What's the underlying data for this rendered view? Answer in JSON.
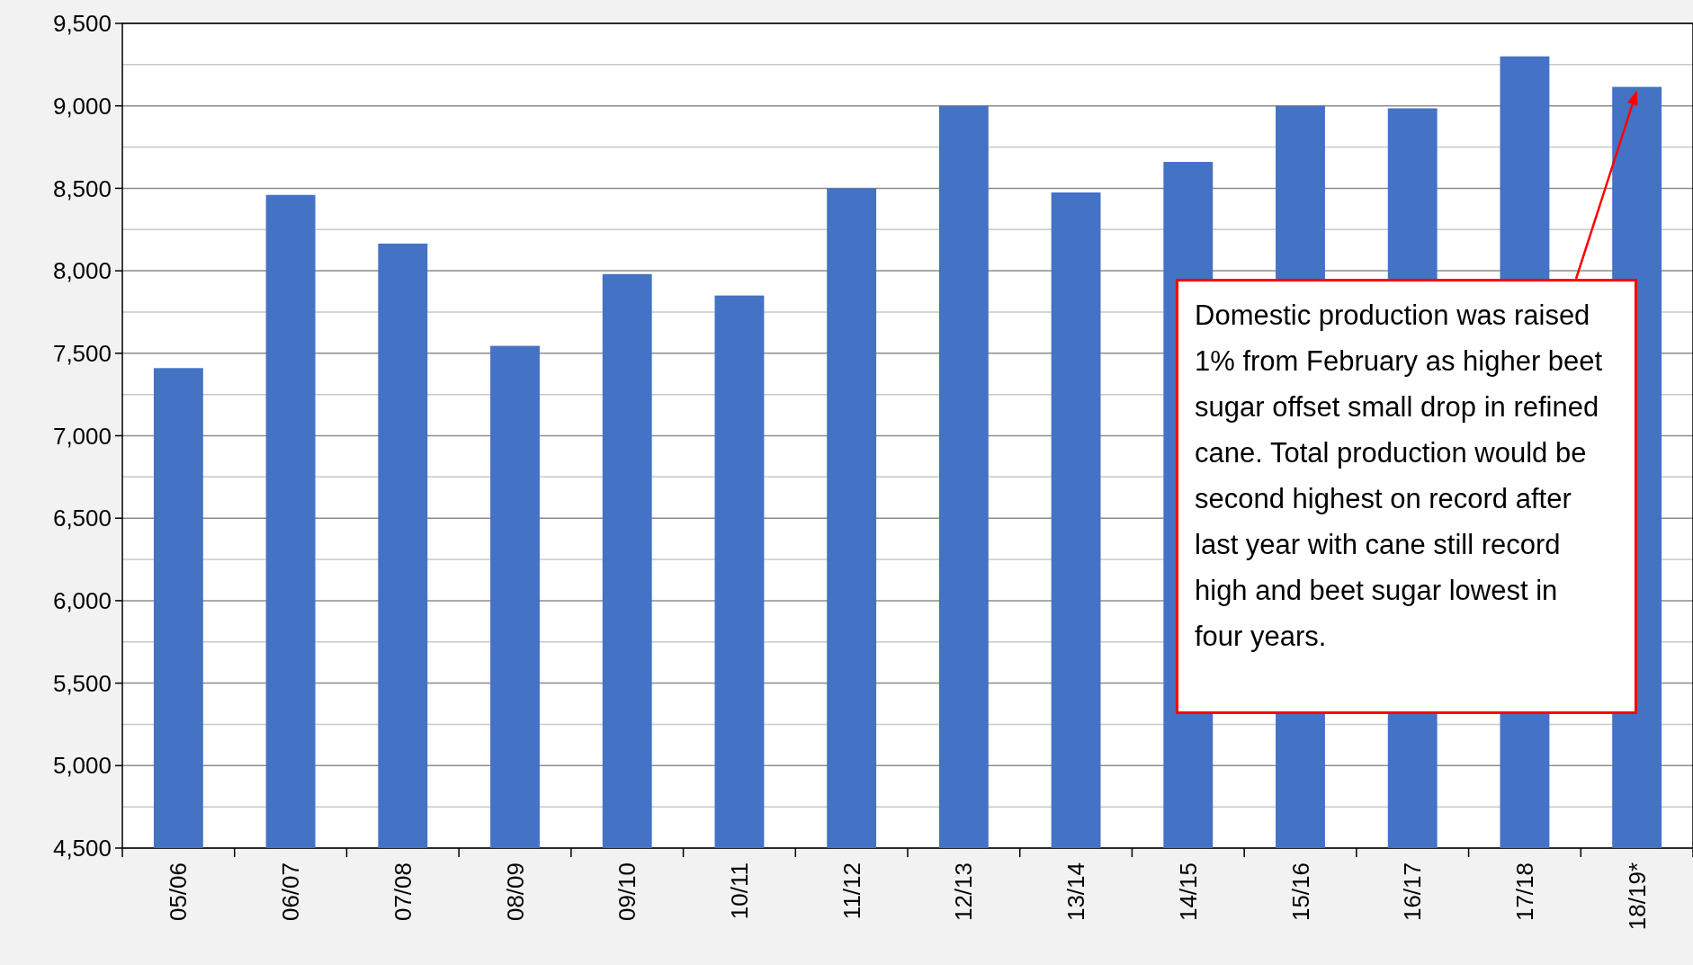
{
  "chart_data": {
    "type": "bar",
    "categories": [
      "05/06",
      "06/07",
      "07/08",
      "08/09",
      "09/10",
      "10/11",
      "11/12",
      "12/13",
      "13/14",
      "14/15",
      "15/16",
      "16/17",
      "17/18",
      "18/19*"
    ],
    "values": [
      7410,
      8460,
      8165,
      7545,
      7980,
      7850,
      8500,
      9000,
      8475,
      8660,
      9000,
      8985,
      9300,
      9115
    ],
    "color": "#4472c4",
    "ylim": [
      4500,
      9500
    ],
    "yticks": [
      {
        "value": 4500,
        "label": "4,500"
      },
      {
        "value": 4750,
        "label": null
      },
      {
        "value": 5000,
        "label": "5,000"
      },
      {
        "value": 5250,
        "label": null
      },
      {
        "value": 5500,
        "label": "5,500"
      },
      {
        "value": 5750,
        "label": null
      },
      {
        "value": 6000,
        "label": "6,000"
      },
      {
        "value": 6250,
        "label": null
      },
      {
        "value": 6500,
        "label": "6,500"
      },
      {
        "value": 6750,
        "label": null
      },
      {
        "value": 7000,
        "label": "7,000"
      },
      {
        "value": 7250,
        "label": null
      },
      {
        "value": 7500,
        "label": "7,500"
      },
      {
        "value": 7750,
        "label": null
      },
      {
        "value": 8000,
        "label": "8,000"
      },
      {
        "value": 8250,
        "label": null
      },
      {
        "value": 8500,
        "label": "8,500"
      },
      {
        "value": 8750,
        "label": null
      },
      {
        "value": 9000,
        "label": "9,000"
      },
      {
        "value": 9250,
        "label": null
      },
      {
        "value": 9500,
        "label": "9,500"
      }
    ],
    "grid": "y",
    "annotations": [
      "Domestic production was raised 1% from February as higher beet sugar offset small drop in refined cane. Total production would be second highest on record after last year with cane still record high and beet sugar lowest in four years."
    ]
  }
}
